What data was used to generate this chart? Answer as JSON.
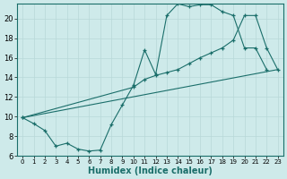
{
  "xlabel": "Humidex (Indice chaleur)",
  "bg_color": "#ceeaea",
  "line_color": "#1a6e6a",
  "grid_color": "#b8d8d8",
  "xlim": [
    -0.5,
    23.5
  ],
  "ylim": [
    6,
    21.5
  ],
  "xticks": [
    0,
    1,
    2,
    3,
    4,
    5,
    6,
    7,
    8,
    9,
    10,
    11,
    12,
    13,
    14,
    15,
    16,
    17,
    18,
    19,
    20,
    21,
    22,
    23
  ],
  "yticks": [
    6,
    8,
    10,
    12,
    14,
    16,
    18,
    20
  ],
  "series": [
    {
      "x": [
        0,
        1,
        2,
        3,
        4,
        5,
        6,
        7,
        8,
        9,
        10,
        11,
        12,
        13,
        14,
        15,
        16,
        17,
        18,
        19,
        20,
        21,
        22
      ],
      "y": [
        9.9,
        9.3,
        8.6,
        7.0,
        7.3,
        6.7,
        6.5,
        6.6,
        9.2,
        11.2,
        13.2,
        16.8,
        14.3,
        20.3,
        21.5,
        21.2,
        21.4,
        21.4,
        20.7,
        20.3,
        17.0,
        17.0,
        14.8
      ],
      "marker": true
    },
    {
      "x": [
        0,
        10,
        11,
        12,
        13,
        14,
        15,
        16,
        17,
        18,
        19,
        20,
        21,
        22,
        23
      ],
      "y": [
        9.9,
        13.0,
        13.8,
        14.2,
        14.5,
        14.8,
        15.4,
        16.0,
        16.5,
        17.0,
        17.8,
        20.3,
        20.3,
        17.0,
        14.8
      ],
      "marker": true
    },
    {
      "x": [
        0,
        23
      ],
      "y": [
        9.9,
        14.8
      ],
      "marker": false
    }
  ]
}
